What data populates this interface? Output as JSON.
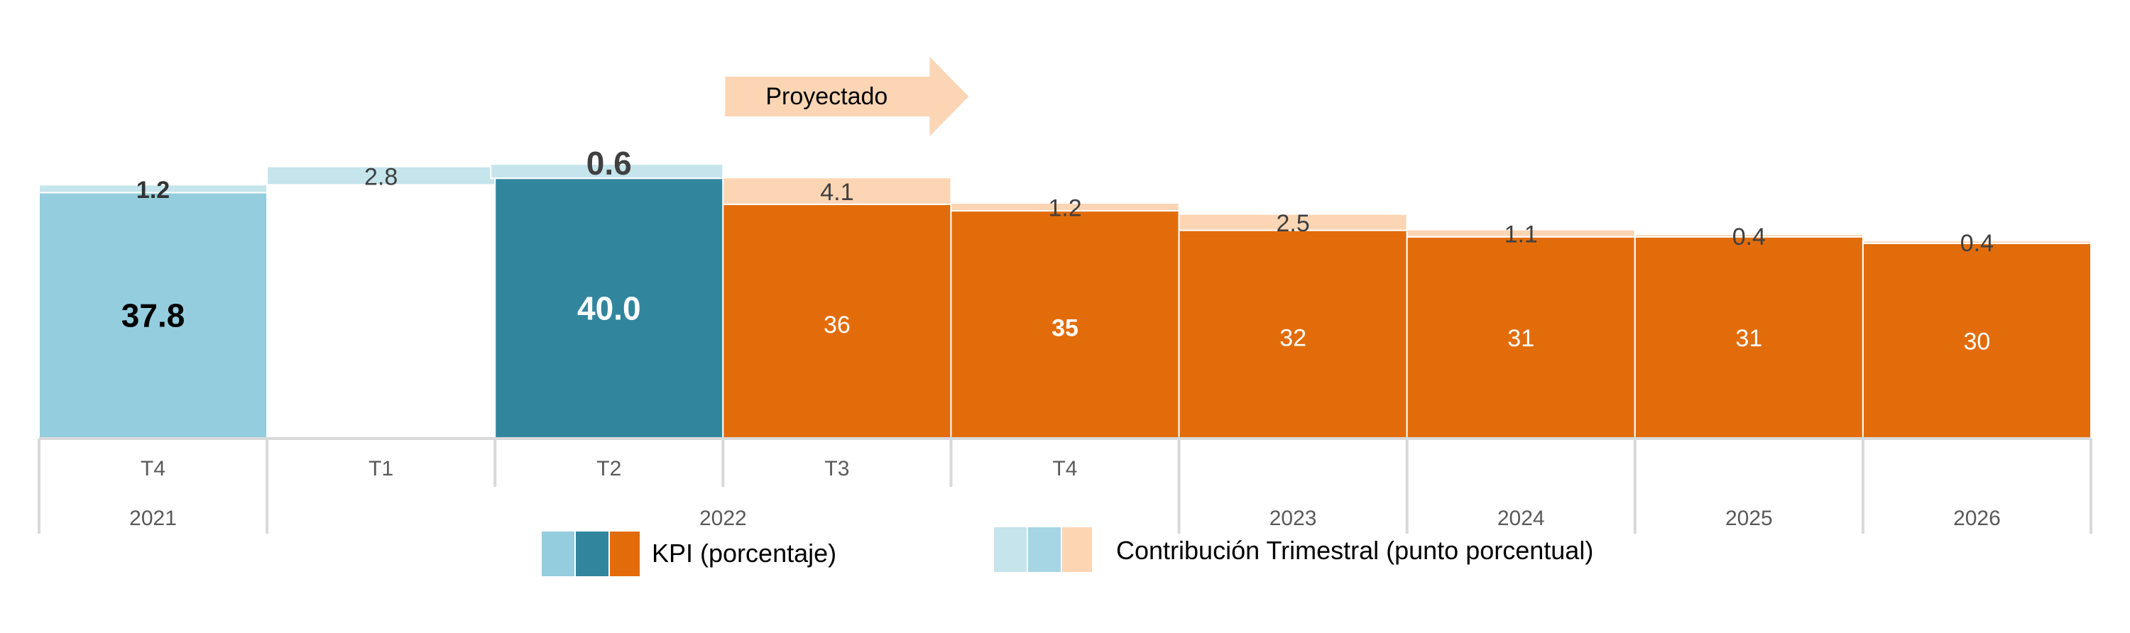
{
  "chart_data": {
    "type": "bar",
    "title": "",
    "xlabel": "",
    "ylabel": "",
    "ylim": [
      0,
      45
    ],
    "colors": {
      "kpi_2021": "#94CDDE",
      "kpi_2022_actual": "#31869E",
      "kpi_projected": "#E36C0A",
      "contrib_actual_light": "#C5E4EC",
      "contrib_actual_mid": "#A6D5E3",
      "contrib_projected": "#FCD5B4",
      "axis": "#D9D9D9",
      "label_dark": "#404040",
      "label_white": "#FFFFFF",
      "label_black": "#000000"
    },
    "bars": [
      {
        "quarter": "T4",
        "kpi": 37.8,
        "kpi_label": "37.8",
        "contribution": 1.2,
        "contribution_label": "1.2",
        "kind": "actual",
        "kpi_color": "kpi_2021",
        "contrib_color": "contrib_actual_light"
      },
      {
        "quarter": "T1",
        "kpi": 40.8,
        "kpi_label": "",
        "contribution": 2.8,
        "contribution_label": "2.8",
        "kind": "actual",
        "kpi_color": "",
        "contrib_color": "contrib_actual_light"
      },
      {
        "quarter": "T2",
        "kpi": 40.0,
        "kpi_label": "40.0",
        "contribution": 0.6,
        "contribution_label": "0.6",
        "kind": "actual",
        "kpi_color": "kpi_2022_actual",
        "contrib_color": "contrib_actual_light"
      },
      {
        "quarter": "T3",
        "kpi": 36,
        "kpi_label": "36",
        "contribution": 4.1,
        "contribution_label": "4.1",
        "kind": "projected",
        "kpi_color": "kpi_projected",
        "contrib_color": "contrib_projected"
      },
      {
        "quarter": "T4",
        "kpi": 35,
        "kpi_label": "35",
        "contribution": 1.2,
        "contribution_label": "1.2",
        "kind": "projected",
        "kpi_color": "kpi_projected",
        "contrib_color": "contrib_projected"
      },
      {
        "quarter": "",
        "kpi": 32,
        "kpi_label": "32",
        "contribution": 2.5,
        "contribution_label": "2.5",
        "kind": "projected",
        "kpi_color": "kpi_projected",
        "contrib_color": "contrib_projected"
      },
      {
        "quarter": "",
        "kpi": 31,
        "kpi_label": "31",
        "contribution": 1.1,
        "contribution_label": "1.1",
        "kind": "projected",
        "kpi_color": "kpi_projected",
        "contrib_color": "contrib_projected"
      },
      {
        "quarter": "",
        "kpi": 31,
        "kpi_label": "31",
        "contribution": 0.4,
        "contribution_label": "0.4",
        "kind": "projected",
        "kpi_color": "kpi_projected",
        "contrib_color": "contrib_projected"
      },
      {
        "quarter": "",
        "kpi": 30,
        "kpi_label": "30",
        "contribution": 0.4,
        "contribution_label": "0.4",
        "kind": "projected",
        "kpi_color": "kpi_projected",
        "contrib_color": "contrib_projected"
      }
    ],
    "year_groups": [
      {
        "label": "2021",
        "from": 0,
        "to": 0
      },
      {
        "label": "2022",
        "from": 1,
        "to": 4
      },
      {
        "label": "2023",
        "from": 5,
        "to": 5
      },
      {
        "label": "2024",
        "from": 6,
        "to": 6
      },
      {
        "label": "2025",
        "from": 7,
        "to": 7
      },
      {
        "label": "2026",
        "from": 8,
        "to": 8
      }
    ],
    "projected_arrow_label": "Proyectado",
    "projected_from_index": 3,
    "legend": {
      "placement": "bottom-center",
      "kpi_label": "KPI (porcentaje)",
      "contribution_label": "Contribución Trimestral (punto porcentual)"
    }
  }
}
